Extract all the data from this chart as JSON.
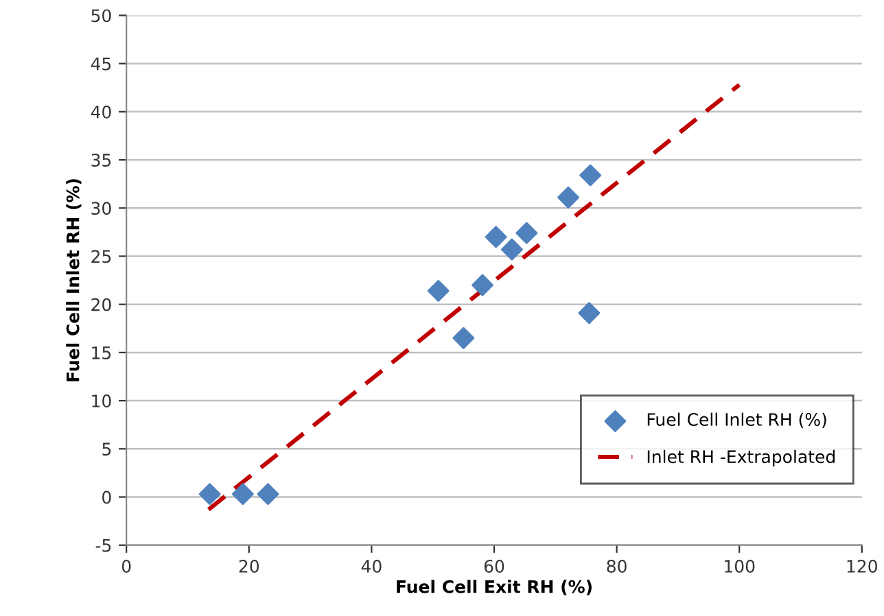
{
  "chart_data": {
    "type": "scatter",
    "xlabel": "Fuel Cell Exit RH (%)",
    "ylabel": "Fuel Cell Inlet RH (%)",
    "xlim": [
      0,
      120
    ],
    "xticks": [
      0,
      20,
      40,
      60,
      80,
      100,
      120
    ],
    "ylim": [
      -5,
      50
    ],
    "yticks": [
      -5,
      0,
      5,
      10,
      15,
      20,
      25,
      30,
      35,
      40,
      45,
      50
    ],
    "grid": "y",
    "legend": "bottom right",
    "series": [
      {
        "name": "Fuel Cell Inlet RH (%)",
        "color": "#4f81bd",
        "marker": "diamond",
        "x": [
          13.6,
          19.0,
          23.1,
          50.9,
          55.0,
          58.1,
          60.3,
          62.9,
          65.3,
          72.1,
          75.7,
          75.5
        ],
        "values": [
          0.3,
          0.3,
          0.3,
          21.4,
          16.5,
          22.0,
          27.0,
          25.7,
          27.4,
          31.1,
          33.4,
          19.1
        ]
      },
      {
        "name": "Inlet RH -Extrapolated",
        "type": "line",
        "color": "#c00000",
        "line_style": "dashed",
        "marker": "none",
        "x": [
          13.4,
          100
        ],
        "values": [
          -1.3,
          42.8
        ]
      }
    ]
  }
}
